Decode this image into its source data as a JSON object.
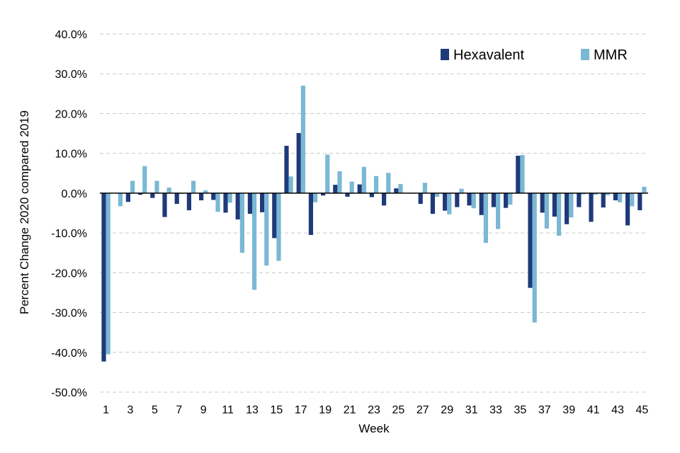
{
  "chart_data": {
    "type": "bar",
    "title": "",
    "xlabel": "Week",
    "ylabel": "Percent Change 2020 compared 2019",
    "ylim": [
      -0.5,
      0.4
    ],
    "ytick_values": [
      0.4,
      0.3,
      0.2,
      0.1,
      0.0,
      -0.1,
      -0.2,
      -0.3,
      -0.4,
      -0.5
    ],
    "ytick_labels": [
      "40.0%",
      "30.0%",
      "20.0%",
      "10.0%",
      "0.0%",
      "-10.0%",
      "-20.0%",
      "-30.0%",
      "-40.0%",
      "-50.0%"
    ],
    "grid": true,
    "legend_position": "top-right",
    "categories": [
      "1",
      "2",
      "3",
      "4",
      "5",
      "6",
      "7",
      "8",
      "9",
      "10",
      "11",
      "12",
      "13",
      "14",
      "15",
      "16",
      "17",
      "18",
      "19",
      "20",
      "21",
      "22",
      "23",
      "24",
      "25",
      "26",
      "27",
      "28",
      "29",
      "30",
      "31",
      "32",
      "33",
      "34",
      "35",
      "36",
      "37",
      "38",
      "39",
      "40",
      "41",
      "42",
      "43",
      "44",
      "45"
    ],
    "xtick_labels": [
      "1",
      "3",
      "5",
      "7",
      "9",
      "11",
      "13",
      "15",
      "17",
      "19",
      "21",
      "23",
      "25",
      "27",
      "29",
      "31",
      "33",
      "35",
      "37",
      "39",
      "41",
      "43",
      "45"
    ],
    "series": [
      {
        "name": "Hexavalent",
        "color": "#1f3a7a",
        "values": [
          -0.423,
          0.0,
          -0.022,
          -0.004,
          -0.012,
          -0.06,
          -0.027,
          -0.043,
          -0.018,
          -0.017,
          -0.049,
          -0.066,
          -0.052,
          -0.048,
          -0.113,
          0.119,
          0.151,
          -0.105,
          -0.006,
          0.021,
          -0.009,
          0.022,
          -0.01,
          -0.031,
          0.012,
          0.0,
          -0.027,
          -0.052,
          -0.044,
          -0.035,
          -0.031,
          -0.055,
          -0.035,
          -0.037,
          0.094,
          -0.238,
          -0.049,
          -0.059,
          -0.078,
          -0.035,
          -0.072,
          -0.036,
          -0.018,
          -0.081,
          -0.043
        ]
      },
      {
        "name": "MMR",
        "color": "#7ab8d4",
        "values": [
          -0.405,
          -0.033,
          0.031,
          0.068,
          0.031,
          0.014,
          -0.002,
          0.031,
          0.007,
          -0.047,
          -0.024,
          -0.15,
          -0.243,
          -0.182,
          -0.17,
          0.042,
          0.27,
          -0.023,
          0.097,
          0.055,
          0.029,
          0.066,
          0.043,
          0.051,
          0.023,
          0.0,
          0.026,
          -0.009,
          -0.053,
          0.011,
          -0.038,
          -0.125,
          -0.09,
          -0.029,
          0.096,
          -0.325,
          -0.089,
          -0.107,
          -0.061,
          -0.003,
          -0.004,
          -0.005,
          -0.023,
          -0.033,
          0.016
        ]
      }
    ]
  }
}
